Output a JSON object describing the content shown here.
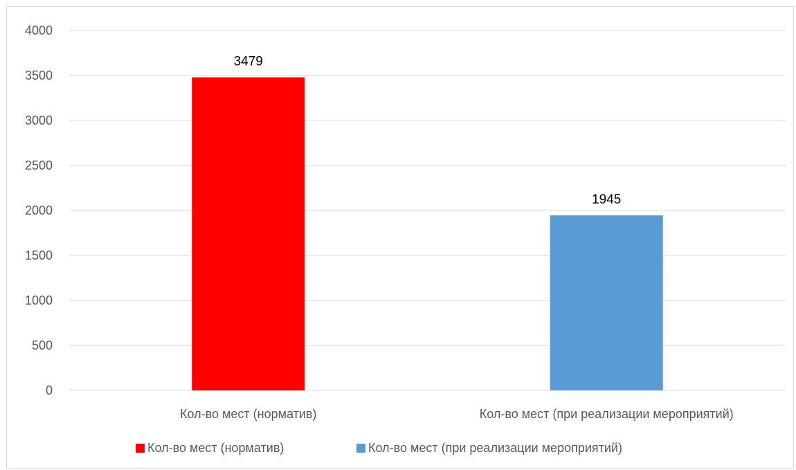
{
  "chart_data": {
    "type": "bar",
    "categories": [
      "Кол-во мест (норматив)",
      "Кол-во мест (при реализации мероприятий)"
    ],
    "series": [
      {
        "name": "Кол-во мест (норматив)",
        "values": [
          3479,
          null
        ],
        "color": "#ff0000"
      },
      {
        "name": "Кол-во мест (при реализации мероприятий)",
        "values": [
          null,
          1945
        ],
        "color": "#5b9bd5"
      }
    ],
    "data_labels": [
      "3479",
      "1945"
    ],
    "yticks": [
      "0",
      "500",
      "1000",
      "1500",
      "2000",
      "2500",
      "3000",
      "3500",
      "4000"
    ],
    "ylim": [
      0,
      4000
    ],
    "grid": true,
    "legend_position": "bottom"
  }
}
